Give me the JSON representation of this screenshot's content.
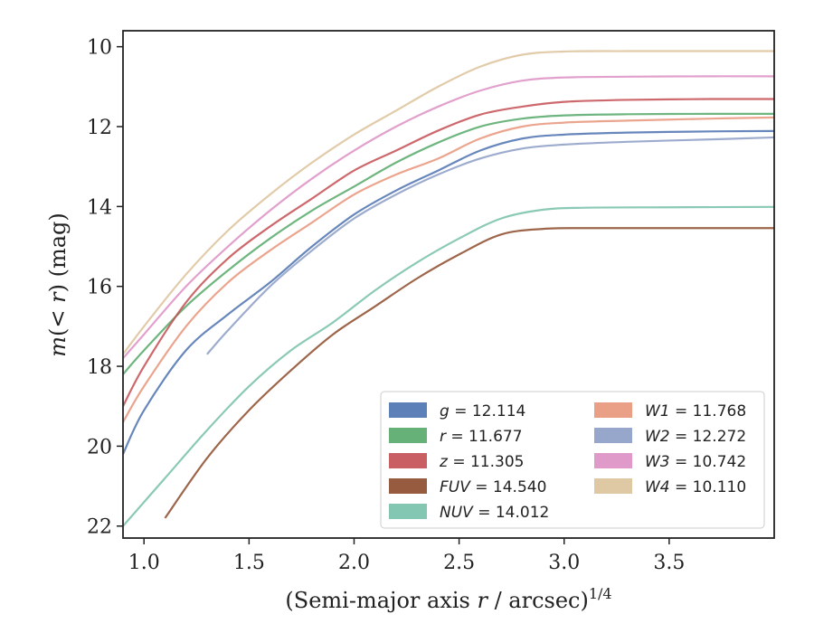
{
  "chart_data": {
    "type": "line",
    "title": "",
    "xlabel_main": "(Semi-major axis ",
    "xlabel_var": "r",
    "xlabel_tail": " / arcsec)",
    "xlabel_sup": "1/4",
    "ylabel_m": "m",
    "ylabel_mid": "(< ",
    "ylabel_r": "r",
    "ylabel_tail": ") (mag)",
    "xlim": [
      0.9,
      4.0
    ],
    "ylim": [
      22.3,
      9.6
    ],
    "y_inverted": true,
    "xticks": [
      1.0,
      1.5,
      2.0,
      2.5,
      3.0,
      3.5
    ],
    "xtick_labels": [
      "1.0",
      "1.5",
      "2.0",
      "2.5",
      "3.0",
      "3.5"
    ],
    "yticks": [
      10,
      12,
      14,
      16,
      18,
      20,
      22
    ],
    "ytick_labels": [
      "10",
      "12",
      "14",
      "16",
      "18",
      "20",
      "22"
    ],
    "grid": false,
    "legend_position": "lower-right",
    "series": [
      {
        "name": "g = 12.114",
        "band": "g",
        "value": "12.114",
        "color": "#4c72b0",
        "x": [
          0.9,
          1.0,
          1.2,
          1.4,
          1.6,
          1.8,
          2.0,
          2.2,
          2.4,
          2.6,
          2.8,
          3.0,
          3.3,
          3.7,
          4.0
        ],
        "y": [
          20.2,
          19.1,
          17.6,
          16.7,
          15.9,
          15.0,
          14.2,
          13.6,
          13.1,
          12.6,
          12.3,
          12.2,
          12.15,
          12.12,
          12.11
        ]
      },
      {
        "name": "r = 11.677",
        "band": "r",
        "value": "11.677",
        "color": "#55a868",
        "x": [
          0.9,
          1.0,
          1.2,
          1.4,
          1.6,
          1.8,
          2.0,
          2.2,
          2.4,
          2.6,
          2.8,
          3.0,
          3.3,
          3.7,
          4.0
        ],
        "y": [
          18.2,
          17.6,
          16.5,
          15.6,
          14.8,
          14.1,
          13.5,
          12.9,
          12.4,
          12.0,
          11.8,
          11.72,
          11.69,
          11.68,
          11.68
        ]
      },
      {
        "name": "z = 11.305",
        "band": "z",
        "value": "11.305",
        "color": "#c44e52",
        "x": [
          0.9,
          1.0,
          1.2,
          1.4,
          1.6,
          1.8,
          2.0,
          2.2,
          2.4,
          2.6,
          2.8,
          3.0,
          3.3,
          3.7,
          4.0
        ],
        "y": [
          19.0,
          18.0,
          16.4,
          15.3,
          14.5,
          13.8,
          13.1,
          12.6,
          12.1,
          11.7,
          11.5,
          11.38,
          11.33,
          11.31,
          11.31
        ]
      },
      {
        "name": "FUV = 14.540",
        "band": "FUV",
        "value": "14.540",
        "color": "#8c4a2a",
        "x": [
          1.1,
          1.3,
          1.5,
          1.7,
          1.9,
          2.1,
          2.3,
          2.5,
          2.7,
          2.9,
          3.1,
          3.5,
          4.0
        ],
        "y": [
          21.8,
          20.3,
          19.1,
          18.1,
          17.2,
          16.5,
          15.8,
          15.2,
          14.7,
          14.56,
          14.54,
          14.54,
          14.54
        ]
      },
      {
        "name": "NUV = 14.012",
        "band": "NUV",
        "value": "14.012",
        "color": "#76c0a8",
        "x": [
          0.9,
          1.1,
          1.3,
          1.5,
          1.7,
          1.9,
          2.1,
          2.3,
          2.5,
          2.7,
          2.9,
          3.1,
          3.5,
          4.0
        ],
        "y": [
          22.0,
          20.8,
          19.6,
          18.5,
          17.6,
          16.9,
          16.1,
          15.4,
          14.8,
          14.3,
          14.08,
          14.03,
          14.02,
          14.01
        ]
      },
      {
        "name": "W1 = 11.768",
        "band": "W1",
        "value": "11.768",
        "color": "#e8957a",
        "x": [
          0.9,
          1.0,
          1.2,
          1.4,
          1.6,
          1.8,
          2.0,
          2.2,
          2.4,
          2.6,
          2.8,
          3.0,
          3.3,
          3.7,
          4.0
        ],
        "y": [
          19.4,
          18.5,
          17.0,
          15.9,
          15.1,
          14.4,
          13.7,
          13.2,
          12.8,
          12.3,
          12.0,
          11.9,
          11.85,
          11.8,
          11.77
        ]
      },
      {
        "name": "W2 = 12.272",
        "band": "W2",
        "value": "12.272",
        "color": "#8c9dc6",
        "x": [
          1.3,
          1.4,
          1.6,
          1.8,
          2.0,
          2.2,
          2.4,
          2.6,
          2.8,
          3.0,
          3.3,
          3.7,
          4.0
        ],
        "y": [
          17.7,
          17.1,
          16.0,
          15.1,
          14.3,
          13.7,
          13.2,
          12.8,
          12.55,
          12.45,
          12.38,
          12.32,
          12.27
        ]
      },
      {
        "name": "W3 = 10.742",
        "band": "W3",
        "value": "10.742",
        "color": "#dd8fc4",
        "x": [
          0.9,
          1.0,
          1.2,
          1.4,
          1.6,
          1.8,
          2.0,
          2.2,
          2.4,
          2.6,
          2.8,
          3.0,
          3.3,
          3.7,
          4.0
        ],
        "y": [
          17.8,
          17.2,
          16.0,
          15.0,
          14.1,
          13.3,
          12.6,
          12.0,
          11.5,
          11.1,
          10.85,
          10.77,
          10.75,
          10.74,
          10.74
        ]
      },
      {
        "name": "W4 = 10.110",
        "band": "W4",
        "value": "10.110",
        "color": "#dcc29a",
        "x": [
          0.9,
          1.0,
          1.2,
          1.4,
          1.6,
          1.8,
          2.0,
          2.2,
          2.4,
          2.6,
          2.8,
          3.0,
          3.3,
          3.7,
          4.0
        ],
        "y": [
          17.7,
          17.0,
          15.7,
          14.6,
          13.7,
          12.9,
          12.2,
          11.6,
          11.0,
          10.5,
          10.2,
          10.12,
          10.11,
          10.11,
          10.11
        ]
      }
    ]
  }
}
